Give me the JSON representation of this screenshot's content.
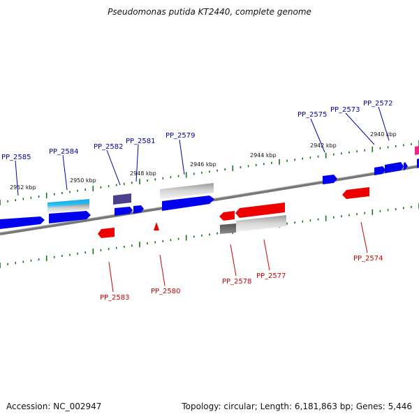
{
  "header": {
    "title": "Pseudomonas putida KT2440, complete genome"
  },
  "footer": {
    "accession": "Accession: NC_002947",
    "summary": "Topology: circular; Length: 6,181,863 bp; Genes: 5,446"
  },
  "map": {
    "colors": {
      "forward_gene": "#0000ee",
      "reverse_gene": "#ee0000",
      "forward_label": "#0000aa",
      "reverse_label": "#cc0000",
      "backbone": "#888888",
      "tick": "#117711",
      "rna_cyan": "#22bbee",
      "misc_purple": "#4a3f8a",
      "pink": "#ee2288"
    },
    "kbp_labels": [
      "2952 kbp",
      "2950 kbp",
      "2948 kbp",
      "2946 kbp",
      "2944 kbp",
      "2942 kbp",
      "2940 kbp"
    ],
    "forward_gene_labels": [
      "PP_2585",
      "PP_2584",
      "PP_2582",
      "PP_2581",
      "PP_2579",
      "PP_2575",
      "PP_2573",
      "PP_2572"
    ],
    "reverse_gene_labels": [
      "PP_2583",
      "PP_2580",
      "PP_2578",
      "PP_2577",
      "PP_2574"
    ]
  }
}
